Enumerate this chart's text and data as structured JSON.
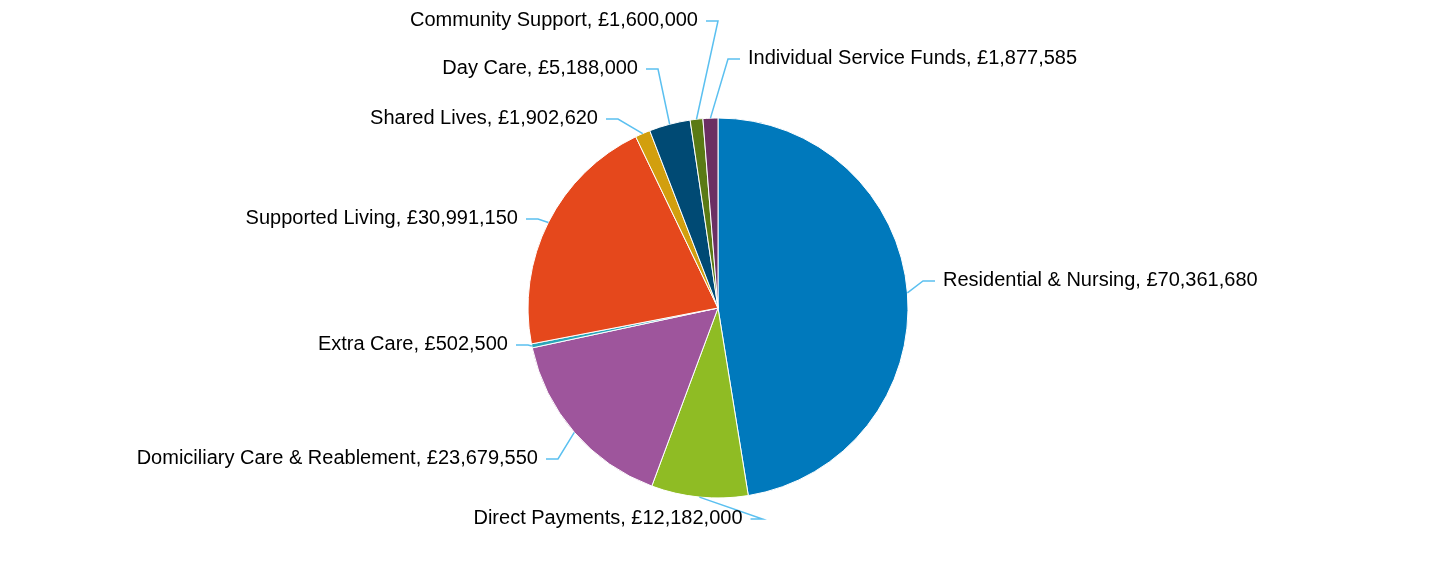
{
  "chart_data": {
    "type": "pie",
    "categories": [
      "Residential & Nursing",
      "Direct Payments",
      "Domiciliary Care & Reablement",
      "Extra Care",
      "Supported Living",
      "Shared Lives",
      "Day Care",
      "Community Support",
      "Individual Service Funds"
    ],
    "values": [
      70361680,
      12182000,
      23679550,
      502500,
      30991150,
      1902620,
      5188000,
      1600000,
      1877585
    ],
    "value_labels": [
      "£70,361,680",
      "£12,182,000",
      "£23,679,550",
      "£502,500",
      "£30,991,150",
      "£1,902,620",
      "£5,188,000",
      "£1,600,000",
      "£1,877,585"
    ],
    "colors": [
      "#0079bc",
      "#8fbc24",
      "#9e559c",
      "#2aa6b8",
      "#e5481c",
      "#d29f0e",
      "#004a74",
      "#5a7a14",
      "#6b2f63"
    ]
  }
}
